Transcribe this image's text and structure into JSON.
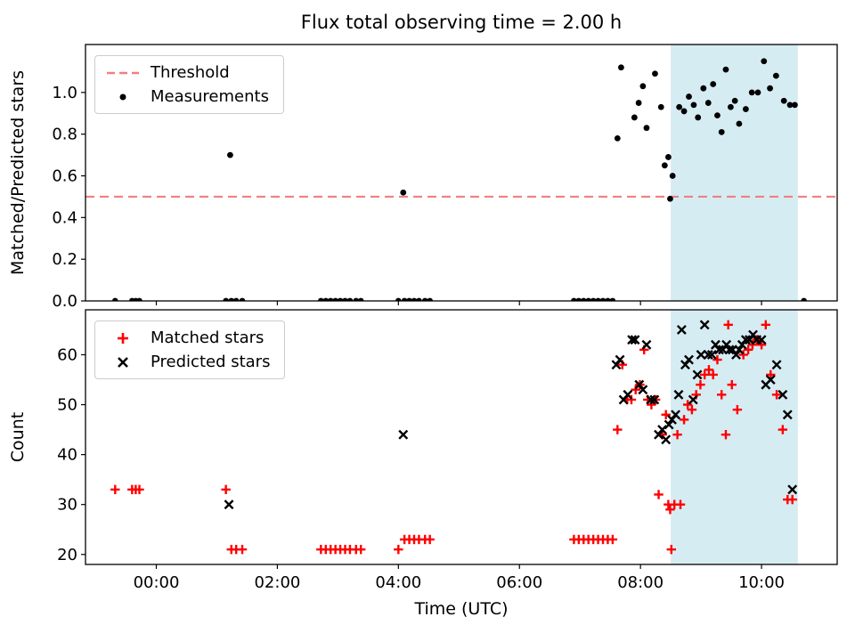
{
  "figure": {
    "title": "Flux total observing time = 2.00 h",
    "background": "#ffffff"
  },
  "colors": {
    "threshold_line": "#f08080",
    "measurements": "#000000",
    "matched": "#ff0000",
    "predicted": "#000000",
    "shade": "#d6ecf3",
    "axis": "#000000"
  },
  "chart_data": [
    {
      "type": "scatter",
      "title": "Flux total observing time = 2.00 h",
      "ylabel": "Matched/Predicted stars",
      "xlabel": "",
      "xlim": [
        -1.17,
        11.25
      ],
      "ylim": [
        0,
        1.23
      ],
      "grid": false,
      "legend_position": "upper left",
      "x_ticks": {
        "positions": [
          0,
          2,
          4,
          6,
          8,
          10
        ],
        "labels": [
          "00:00",
          "02:00",
          "04:00",
          "06:00",
          "08:00",
          "10:00"
        ],
        "labels_visible": false
      },
      "y_ticks": {
        "positions": [
          0.0,
          0.2,
          0.4,
          0.6,
          0.8,
          1.0
        ],
        "labels": [
          "0.0",
          "0.2",
          "0.4",
          "0.6",
          "0.8",
          "1.0"
        ]
      },
      "threshold": 0.5,
      "shaded_region": [
        8.5,
        10.6
      ],
      "legend": [
        {
          "label": "Threshold",
          "marker": "dashed-line"
        },
        {
          "label": "Measurements",
          "marker": "dot"
        }
      ],
      "series": [
        {
          "name": "Measurements",
          "marker": "dot",
          "color": "#000000",
          "points": [
            [
              -0.68,
              0
            ],
            [
              -0.4,
              0
            ],
            [
              -0.34,
              0
            ],
            [
              -0.28,
              0
            ],
            [
              1.15,
              0
            ],
            [
              1.24,
              0
            ],
            [
              1.32,
              0
            ],
            [
              1.42,
              0
            ],
            [
              2.72,
              0
            ],
            [
              2.8,
              0
            ],
            [
              2.88,
              0
            ],
            [
              2.96,
              0
            ],
            [
              3.04,
              0
            ],
            [
              3.12,
              0
            ],
            [
              3.2,
              0
            ],
            [
              3.3,
              0
            ],
            [
              3.38,
              0
            ],
            [
              4.0,
              0
            ],
            [
              4.1,
              0
            ],
            [
              4.18,
              0
            ],
            [
              4.26,
              0
            ],
            [
              4.34,
              0
            ],
            [
              4.44,
              0
            ],
            [
              4.52,
              0
            ],
            [
              6.9,
              0
            ],
            [
              6.98,
              0
            ],
            [
              7.06,
              0
            ],
            [
              7.14,
              0
            ],
            [
              7.22,
              0
            ],
            [
              7.3,
              0
            ],
            [
              7.38,
              0
            ],
            [
              7.46,
              0
            ],
            [
              7.54,
              0
            ],
            [
              10.7,
              0
            ],
            [
              1.22,
              0.7
            ],
            [
              4.08,
              0.52
            ],
            [
              7.62,
              0.78
            ],
            [
              7.68,
              1.12
            ],
            [
              7.9,
              0.88
            ],
            [
              7.97,
              0.95
            ],
            [
              8.04,
              1.03
            ],
            [
              8.1,
              0.83
            ],
            [
              8.24,
              1.09
            ],
            [
              8.34,
              0.93
            ],
            [
              8.4,
              0.65
            ],
            [
              8.46,
              0.69
            ],
            [
              8.49,
              0.49
            ],
            [
              8.53,
              0.6
            ],
            [
              8.64,
              0.93
            ],
            [
              8.72,
              0.91
            ],
            [
              8.8,
              0.98
            ],
            [
              8.88,
              0.94
            ],
            [
              8.95,
              0.88
            ],
            [
              9.04,
              1.02
            ],
            [
              9.12,
              0.95
            ],
            [
              9.2,
              1.04
            ],
            [
              9.27,
              0.89
            ],
            [
              9.34,
              0.81
            ],
            [
              9.41,
              1.11
            ],
            [
              9.49,
              0.93
            ],
            [
              9.56,
              0.96
            ],
            [
              9.63,
              0.85
            ],
            [
              9.74,
              0.92
            ],
            [
              9.84,
              1.0
            ],
            [
              9.94,
              1.0
            ],
            [
              10.04,
              1.15
            ],
            [
              10.14,
              1.02
            ],
            [
              10.24,
              1.08
            ],
            [
              10.37,
              0.96
            ],
            [
              10.47,
              0.94
            ],
            [
              10.55,
              0.94
            ]
          ]
        }
      ]
    },
    {
      "type": "scatter",
      "ylabel": "Count",
      "xlabel": "Time (UTC)",
      "xlim": [
        -1.17,
        11.25
      ],
      "ylim": [
        18,
        69
      ],
      "grid": false,
      "legend_position": "upper left",
      "x_ticks": {
        "positions": [
          0,
          2,
          4,
          6,
          8,
          10
        ],
        "labels": [
          "00:00",
          "02:00",
          "04:00",
          "06:00",
          "08:00",
          "10:00"
        ],
        "labels_visible": true
      },
      "y_ticks": {
        "positions": [
          20,
          30,
          40,
          50,
          60
        ],
        "labels": [
          "20",
          "30",
          "40",
          "50",
          "60"
        ]
      },
      "threshold": null,
      "shaded_region": [
        8.5,
        10.6
      ],
      "legend": [
        {
          "label": "Matched stars",
          "marker": "plus"
        },
        {
          "label": "Predicted stars",
          "marker": "x"
        }
      ],
      "series": [
        {
          "name": "Matched stars",
          "marker": "plus",
          "color": "#ff0000",
          "points": [
            [
              -0.68,
              33
            ],
            [
              -0.4,
              33
            ],
            [
              -0.34,
              33
            ],
            [
              -0.28,
              33
            ],
            [
              1.15,
              33
            ],
            [
              1.24,
              21
            ],
            [
              1.32,
              21
            ],
            [
              1.42,
              21
            ],
            [
              2.72,
              21
            ],
            [
              2.8,
              21
            ],
            [
              2.88,
              21
            ],
            [
              2.96,
              21
            ],
            [
              3.04,
              21
            ],
            [
              3.12,
              21
            ],
            [
              3.2,
              21
            ],
            [
              3.3,
              21
            ],
            [
              3.38,
              21
            ],
            [
              4.0,
              21
            ],
            [
              4.1,
              23
            ],
            [
              4.18,
              23
            ],
            [
              4.26,
              23
            ],
            [
              4.34,
              23
            ],
            [
              4.44,
              23
            ],
            [
              4.52,
              23
            ],
            [
              6.9,
              23
            ],
            [
              6.98,
              23
            ],
            [
              7.06,
              23
            ],
            [
              7.14,
              23
            ],
            [
              7.22,
              23
            ],
            [
              7.3,
              23
            ],
            [
              7.38,
              23
            ],
            [
              7.46,
              23
            ],
            [
              7.54,
              23
            ],
            [
              7.62,
              45
            ],
            [
              7.7,
              58
            ],
            [
              7.78,
              51
            ],
            [
              7.85,
              51
            ],
            [
              7.92,
              53
            ],
            [
              7.99,
              54
            ],
            [
              8.06,
              61
            ],
            [
              8.12,
              51
            ],
            [
              8.18,
              50
            ],
            [
              8.25,
              51
            ],
            [
              8.3,
              32
            ],
            [
              8.36,
              44
            ],
            [
              8.42,
              48
            ],
            [
              8.46,
              30
            ],
            [
              8.49,
              29
            ],
            [
              8.51,
              21
            ],
            [
              8.56,
              30
            ],
            [
              8.61,
              44
            ],
            [
              8.66,
              30
            ],
            [
              8.72,
              47
            ],
            [
              8.78,
              50
            ],
            [
              8.85,
              49
            ],
            [
              8.92,
              52
            ],
            [
              8.99,
              54
            ],
            [
              9.06,
              56
            ],
            [
              9.13,
              57
            ],
            [
              9.2,
              56
            ],
            [
              9.27,
              59
            ],
            [
              9.34,
              52
            ],
            [
              9.41,
              44
            ],
            [
              9.45,
              66
            ],
            [
              9.51,
              54
            ],
            [
              9.6,
              49
            ],
            [
              9.7,
              60
            ],
            [
              9.78,
              61
            ],
            [
              9.85,
              62
            ],
            [
              9.92,
              63
            ],
            [
              10.0,
              62
            ],
            [
              10.07,
              66
            ],
            [
              10.15,
              56
            ],
            [
              10.25,
              52
            ],
            [
              10.35,
              45
            ],
            [
              10.43,
              31
            ],
            [
              10.51,
              31
            ]
          ]
        },
        {
          "name": "Predicted stars",
          "marker": "x",
          "color": "#000000",
          "points": [
            [
              1.2,
              30
            ],
            [
              4.08,
              44
            ],
            [
              7.6,
              58
            ],
            [
              7.66,
              59
            ],
            [
              7.72,
              51
            ],
            [
              7.79,
              52
            ],
            [
              7.86,
              63
            ],
            [
              7.91,
              63
            ],
            [
              7.98,
              54
            ],
            [
              8.04,
              53
            ],
            [
              8.1,
              62
            ],
            [
              8.17,
              51
            ],
            [
              8.23,
              51
            ],
            [
              8.3,
              44
            ],
            [
              8.36,
              45
            ],
            [
              8.42,
              43
            ],
            [
              8.47,
              46
            ],
            [
              8.52,
              47
            ],
            [
              8.58,
              48
            ],
            [
              8.63,
              52
            ],
            [
              8.68,
              65
            ],
            [
              8.74,
              58
            ],
            [
              8.8,
              59
            ],
            [
              8.87,
              51
            ],
            [
              8.94,
              56
            ],
            [
              9.0,
              60
            ],
            [
              9.06,
              66
            ],
            [
              9.12,
              60
            ],
            [
              9.18,
              60
            ],
            [
              9.24,
              62
            ],
            [
              9.3,
              61
            ],
            [
              9.36,
              61
            ],
            [
              9.42,
              62
            ],
            [
              9.47,
              61
            ],
            [
              9.52,
              61
            ],
            [
              9.58,
              60
            ],
            [
              9.63,
              61
            ],
            [
              9.68,
              62
            ],
            [
              9.74,
              63
            ],
            [
              9.8,
              63
            ],
            [
              9.86,
              64
            ],
            [
              9.92,
              63
            ],
            [
              10.0,
              63
            ],
            [
              10.07,
              54
            ],
            [
              10.15,
              55
            ],
            [
              10.25,
              58
            ],
            [
              10.35,
              52
            ],
            [
              10.43,
              48
            ],
            [
              10.51,
              33
            ]
          ]
        }
      ]
    }
  ]
}
